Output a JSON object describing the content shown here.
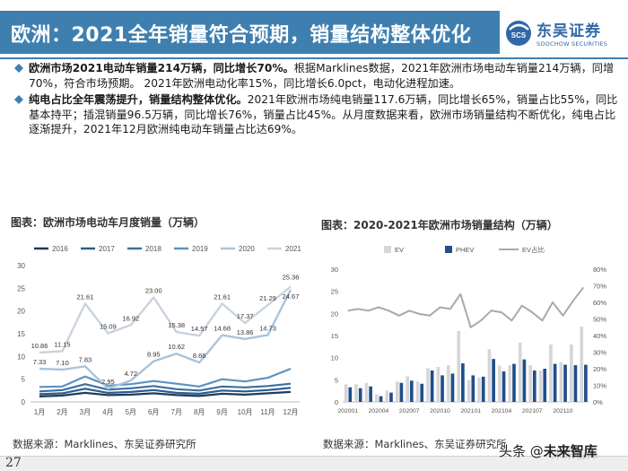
{
  "header": {
    "title": "欧洲：2021全年销量符合预期，销量结构整体优化",
    "brand": {
      "name": "东吴证券",
      "english": "SOOCHOW SECURITIES",
      "mark": "SCS"
    }
  },
  "bullets": [
    {
      "bold": "欧洲市场2021电动车销量214万辆，同比增长70%。",
      "text": "根据Marklines数据，2021年欧洲市场电动车销量214万辆，同增70%，符合市场预期。 2021年欧洲电动化率15%，同比增长6.0pct，电动化进程加速。"
    },
    {
      "bold": "纯电占比全年震荡提升，销量结构整体优化。",
      "text": "2021年欧洲市场纯电销量117.6万辆，同比增长65%，销量占比55%，同比基本持平；插混销量96.5万辆，同比增长76%，销量占比45%。从月度数据来看，欧洲市场销量结构不断优化，纯电占比逐渐提升，2021年12月欧洲纯电动车销量占比达69%。"
    }
  ],
  "charts": {
    "left_title": "图表：欧洲市场电动车月度销量（万辆）",
    "right_title": "图表：2020-2021年欧洲市场销量结构（万辆）",
    "left_source": "数据来源：Marklines、东吴证券研究所",
    "right_source": "数据来源：Marklines、东吴证券研究所"
  },
  "footer": {
    "page": "27",
    "watermark_prefix": "头条 @",
    "watermark_name": "未来智库",
    "watermark_faint": "未来智库"
  },
  "colors": {
    "primary": "#3e7fb0",
    "s2016": "#1f3a5f",
    "s2017": "#2e5b8a",
    "s2018": "#3f6f9c",
    "s2019": "#5b92c2",
    "s2020": "#a9c3dc",
    "s2021": "#c9d3de",
    "ev": "#d6d6d6",
    "phev": "#1f4e8c",
    "share": "#a9a9a9"
  },
  "chart_data": [
    {
      "type": "line",
      "title": "图表：欧洲市场电动车月度销量（万辆）",
      "categories": [
        "1月",
        "2月",
        "3月",
        "4月",
        "5月",
        "6月",
        "7月",
        "8月",
        "9月",
        "10月",
        "11月",
        "12月"
      ],
      "ylim": [
        0,
        30
      ],
      "yticks": [
        0,
        5,
        10,
        15,
        20,
        25,
        30
      ],
      "legend_position": "top",
      "grid": false,
      "series": [
        {
          "name": "2016",
          "values": [
            1.2,
            1.4,
            2.0,
            1.5,
            1.6,
            1.9,
            1.5,
            1.3,
            1.8,
            1.6,
            1.9,
            2.2
          ]
        },
        {
          "name": "2017",
          "values": [
            1.7,
            1.9,
            2.9,
            2.0,
            2.2,
            2.6,
            2.0,
            1.8,
            2.5,
            2.3,
            2.6,
            3.1
          ]
        },
        {
          "name": "2018",
          "values": [
            2.3,
            2.6,
            3.9,
            2.7,
            3.0,
            3.5,
            2.8,
            2.5,
            3.4,
            3.2,
            3.5,
            4.0
          ]
        },
        {
          "name": "2019",
          "values": [
            3.3,
            3.4,
            5.6,
            3.6,
            3.9,
            4.6,
            4.0,
            3.4,
            5.0,
            4.5,
            5.3,
            7.3
          ]
        },
        {
          "name": "2020",
          "values": [
            7.33,
            7.1,
            7.83,
            2.95,
            4.72,
            8.95,
            10.62,
            8.66,
            14.68,
            13.86,
            14.73,
            24.67
          ]
        },
        {
          "name": "2021",
          "values": [
            10.86,
            11.15,
            21.61,
            15.09,
            16.92,
            23.0,
            15.38,
            14.57,
            21.61,
            17.37,
            21.29,
            25.36
          ]
        }
      ],
      "data_labels": {
        "2020": [
          "7.33",
          "7.10",
          "7.83",
          "2.95",
          "4.72",
          "8.95",
          "10.62",
          "8.66",
          "14.68",
          "13.86",
          "14.73",
          "24.67"
        ],
        "2021": [
          "10.86",
          "11.15",
          "21.61",
          "15.09",
          "16.92",
          "23.00",
          "15.38",
          "14.57",
          "21.61",
          "17.37",
          "21.29",
          "25.36"
        ]
      }
    },
    {
      "type": "bar",
      "title": "图表：2020-2021年欧洲市场销量结构（万辆）",
      "categories": [
        "202001",
        "202002",
        "202003",
        "202004",
        "202005",
        "202006",
        "202007",
        "202008",
        "202009",
        "202010",
        "202011",
        "202012",
        "202101",
        "202102",
        "202103",
        "202104",
        "202105",
        "202106",
        "202107",
        "202108",
        "202109",
        "202110",
        "202111",
        "202112"
      ],
      "tick_labels": [
        "202001",
        "202004",
        "202007",
        "202010",
        "202101",
        "202104",
        "202107",
        "202110"
      ],
      "ylim_left": [
        0,
        30
      ],
      "yticks_left": [
        0,
        5,
        10,
        15,
        20,
        25,
        30
      ],
      "ylim_right": [
        0,
        80
      ],
      "yticks_right": [
        "0%",
        "10%",
        "20%",
        "30%",
        "40%",
        "50%",
        "60%",
        "70%",
        "80%"
      ],
      "legend_position": "top",
      "series": [
        {
          "name": "EV",
          "values": [
            4.0,
            4.0,
            4.3,
            1.7,
            2.6,
            4.6,
            5.8,
            4.6,
            7.6,
            7.9,
            8.3,
            16.0,
            4.9,
            5.5,
            11.9,
            8.2,
            8.3,
            13.4,
            8.3,
            7.1,
            13.0,
            9.0,
            13.0,
            17.0
          ]
        },
        {
          "name": "PHEV",
          "values": [
            3.3,
            3.1,
            3.5,
            1.3,
            2.1,
            4.3,
            4.8,
            4.1,
            7.1,
            6.0,
            6.4,
            8.7,
            6.0,
            5.7,
            9.7,
            6.9,
            8.6,
            9.6,
            7.1,
            7.5,
            8.6,
            8.4,
            8.3,
            8.4
          ]
        },
        {
          "name": "EV占比",
          "axis": "right",
          "values": [
            55,
            56,
            55,
            57,
            55,
            52,
            55,
            53,
            52,
            57,
            56,
            65,
            45,
            49,
            55,
            54,
            49,
            58,
            54,
            49,
            60,
            52,
            61,
            69
          ]
        }
      ]
    }
  ]
}
